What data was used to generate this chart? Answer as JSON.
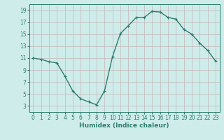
{
  "x": [
    0,
    1,
    2,
    3,
    4,
    5,
    6,
    7,
    8,
    9,
    10,
    11,
    12,
    13,
    14,
    15,
    16,
    17,
    18,
    19,
    20,
    21,
    22,
    23
  ],
  "y": [
    11,
    10.8,
    10.4,
    10.2,
    8,
    5.5,
    4.2,
    3.7,
    3.2,
    5.5,
    11.2,
    15.1,
    16.4,
    17.8,
    17.8,
    18.8,
    18.7,
    17.8,
    17.5,
    15.8,
    15.0,
    13.5,
    12.3,
    10.5
  ],
  "line_color": "#2e7d6e",
  "marker": "+",
  "bg_color": "#ceecea",
  "grid_color": "#c4b8b8",
  "axis_bg_color": "#ceecea",
  "xlabel": "Humidex (Indice chaleur)",
  "xlim": [
    -0.5,
    23.5
  ],
  "ylim": [
    2,
    20
  ],
  "xticks": [
    0,
    1,
    2,
    3,
    4,
    5,
    6,
    7,
    8,
    9,
    10,
    11,
    12,
    13,
    14,
    15,
    16,
    17,
    18,
    19,
    20,
    21,
    22,
    23
  ],
  "yticks": [
    3,
    5,
    7,
    9,
    11,
    13,
    15,
    17,
    19
  ],
  "tick_fontsize": 5.5,
  "xlabel_fontsize": 6.5,
  "linewidth": 1.0,
  "markersize": 3.5,
  "markeredgewidth": 0.9
}
